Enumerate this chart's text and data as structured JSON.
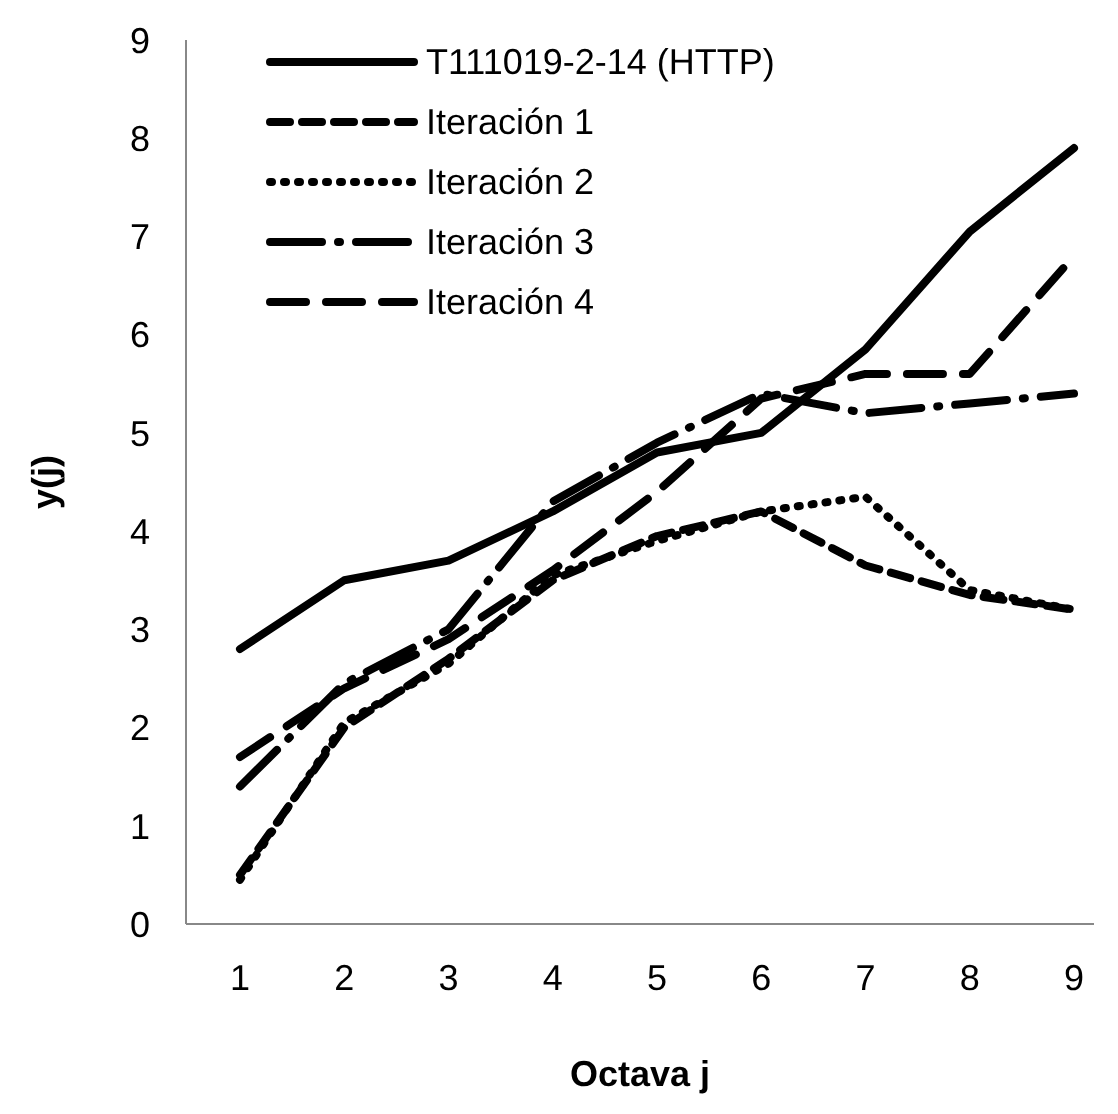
{
  "chart_data": {
    "type": "line",
    "xlabel": "Octava j",
    "ylabel": "y(j)",
    "categories": [
      "1",
      "2",
      "3",
      "4",
      "5",
      "6",
      "7",
      "8",
      "9"
    ],
    "series": [
      {
        "name": "T111019-2-14 (HTTP)",
        "color": "#000000",
        "line_style": "solid",
        "values": [
          2.8,
          3.5,
          3.7,
          4.2,
          4.8,
          5.0,
          5.85,
          7.05,
          7.9
        ]
      },
      {
        "name": "Iteración 1",
        "color": "#000000",
        "line_style": "dashed",
        "values": [
          0.5,
          2.0,
          2.7,
          3.5,
          3.95,
          4.2,
          3.65,
          3.35,
          3.2
        ]
      },
      {
        "name": "Iteración 2",
        "color": "#000000",
        "line_style": "dotted",
        "values": [
          0.45,
          2.05,
          2.65,
          3.55,
          3.9,
          4.2,
          4.35,
          3.4,
          3.2
        ]
      },
      {
        "name": "Iteración 3",
        "color": "#000000",
        "line_style": "dashed",
        "values": [
          1.4,
          2.45,
          3.0,
          4.3,
          4.9,
          5.4,
          5.2,
          5.3,
          5.4
        ]
      },
      {
        "name": "Iteración 4",
        "color": "#000000",
        "line_style": "dashed",
        "values": [
          1.7,
          2.4,
          2.9,
          3.6,
          4.4,
          5.35,
          5.6,
          5.6,
          6.8
        ]
      }
    ],
    "ylim": [
      0,
      9
    ],
    "yticks": [
      0,
      1,
      2,
      3,
      4,
      5,
      6,
      7,
      8,
      9
    ],
    "grid": false,
    "legend": "top left",
    "marker": "none"
  }
}
